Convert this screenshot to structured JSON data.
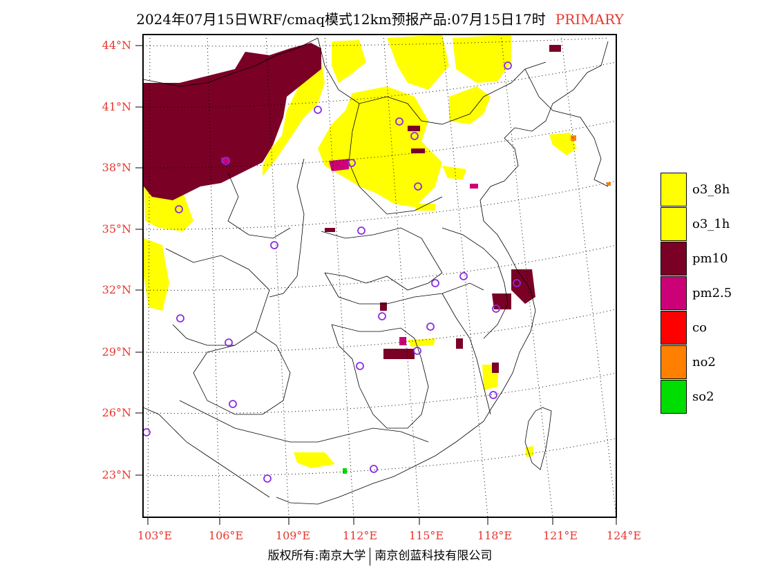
{
  "title": {
    "text": "2024年07月15日WRF/cmaq模式12km预报产品:07月15日17时",
    "tag": "PRIMARY",
    "tag_color": "#e8352e"
  },
  "axes": {
    "lat_labels": [
      "44°N",
      "41°N",
      "38°N",
      "35°N",
      "32°N",
      "29°N",
      "26°N",
      "23°N"
    ],
    "lon_labels": [
      "103°E",
      "106°E",
      "109°E",
      "112°E",
      "115°E",
      "118°E",
      "121°E",
      "124°E"
    ],
    "label_color": "#e8352e",
    "graticule": "dotted"
  },
  "legend": {
    "items": [
      {
        "label": "o3_8h",
        "color": "#ffff00"
      },
      {
        "label": "o3_1h",
        "color": "#ffff00"
      },
      {
        "label": "pm10",
        "color": "#7a0026"
      },
      {
        "label": "pm2.5",
        "color": "#cc0077"
      },
      {
        "label": "co",
        "color": "#ff0000"
      },
      {
        "label": "no2",
        "color": "#ff8000"
      },
      {
        "label": "so2",
        "color": "#00dd00"
      }
    ]
  },
  "markers": {
    "type": "city-station-circle",
    "color": "#8a2be2"
  },
  "footer": {
    "left": "版权所有:南京大学",
    "right": "南京创蓝科技有限公司"
  }
}
